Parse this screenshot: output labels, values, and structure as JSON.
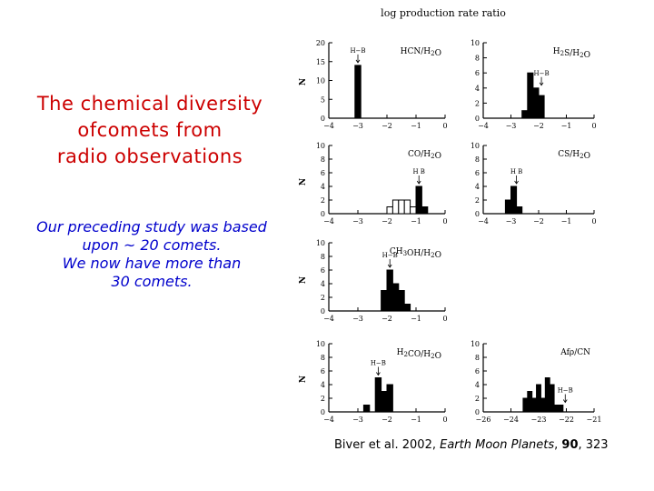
{
  "slide": {
    "title_lines": [
      "The chemical diversity",
      "ofcomets from",
      "radio observations"
    ],
    "note_lines": [
      "Our preceding study was based",
      "upon  ~ 20 comets.",
      "We now have more than",
      "30 comets."
    ],
    "citation": {
      "pre": "Biver et al. 2002, ",
      "journal": "Earth Moon Planets",
      "mid": ", ",
      "volume": "90",
      "post": ", 323"
    }
  },
  "colors": {
    "title": "#cc0000",
    "note": "#0000cc",
    "bar": "#000000"
  },
  "chart_data": {
    "type": "histogram",
    "title": "log production rate ratio",
    "ylabel": "N",
    "panels": [
      {
        "label": "HCN/H2O",
        "xlim": [
          -4,
          0
        ],
        "ylim": [
          0,
          20
        ],
        "xticks": [
          "−4",
          "−3",
          "−2",
          "−1",
          "0"
        ],
        "yticks": [
          "0",
          "5",
          "10",
          "15",
          "20"
        ],
        "bins": [
          {
            "x0": -3.1,
            "x1": -2.9,
            "count": 14
          }
        ],
        "marker": {
          "label": "H−B",
          "x": -3.0
        }
      },
      {
        "label": "H2S/H2O",
        "xlim": [
          -4,
          0
        ],
        "ylim": [
          0,
          10
        ],
        "xticks": [
          "−4",
          "−3",
          "−2",
          "−1",
          "0"
        ],
        "yticks": [
          "0",
          "2",
          "4",
          "6",
          "8",
          "10"
        ],
        "bins": [
          {
            "x0": -2.6,
            "x1": -2.4,
            "count": 1
          },
          {
            "x0": -2.4,
            "x1": -2.2,
            "count": 6
          },
          {
            "x0": -2.2,
            "x1": -2.0,
            "count": 4
          },
          {
            "x0": -2.0,
            "x1": -1.8,
            "count": 3
          }
        ],
        "marker": {
          "label": "H−B",
          "x": -1.9
        }
      },
      {
        "label": "CO/H2O",
        "xlim": [
          -4,
          0
        ],
        "ylim": [
          0,
          10
        ],
        "xticks": [
          "−4",
          "−3",
          "−2",
          "−1",
          "0"
        ],
        "yticks": [
          "0",
          "2",
          "4",
          "6",
          "8",
          "10"
        ],
        "bins": [
          {
            "x0": -2.0,
            "x1": -1.8,
            "count": 1,
            "open": true
          },
          {
            "x0": -1.8,
            "x1": -1.6,
            "count": 2,
            "open": true
          },
          {
            "x0": -1.6,
            "x1": -1.4,
            "count": 2,
            "open": true
          },
          {
            "x0": -1.4,
            "x1": -1.2,
            "count": 2,
            "open": true
          },
          {
            "x0": -1.2,
            "x1": -1.0,
            "count": 1,
            "open": true
          },
          {
            "x0": -1.0,
            "x1": -0.8,
            "count": 4
          },
          {
            "x0": -0.8,
            "x1": -0.6,
            "count": 1
          }
        ],
        "marker": {
          "label": "H B",
          "x": -0.9
        }
      },
      {
        "label": "CS/H2O",
        "xlim": [
          -4,
          0
        ],
        "ylim": [
          0,
          10
        ],
        "xticks": [
          "−4",
          "−3",
          "−2",
          "−1",
          "0"
        ],
        "yticks": [
          "0",
          "2",
          "4",
          "6",
          "8",
          "10"
        ],
        "bins": [
          {
            "x0": -3.2,
            "x1": -3.0,
            "count": 2
          },
          {
            "x0": -3.0,
            "x1": -2.8,
            "count": 4
          },
          {
            "x0": -2.8,
            "x1": -2.6,
            "count": 1
          }
        ],
        "marker": {
          "label": "H B",
          "x": -2.8
        }
      },
      {
        "label": "CH3OH/H2O",
        "xlim": [
          -4,
          0
        ],
        "ylim": [
          0,
          10
        ],
        "xticks": [
          "−4",
          "−3",
          "−2",
          "−1",
          "0"
        ],
        "yticks": [
          "0",
          "2",
          "4",
          "6",
          "8",
          "10"
        ],
        "bins": [
          {
            "x0": -2.2,
            "x1": -2.0,
            "count": 3
          },
          {
            "x0": -2.0,
            "x1": -1.8,
            "count": 6
          },
          {
            "x0": -1.8,
            "x1": -1.6,
            "count": 4
          },
          {
            "x0": -1.6,
            "x1": -1.4,
            "count": 3
          },
          {
            "x0": -1.4,
            "x1": -1.2,
            "count": 1
          }
        ],
        "marker": {
          "label": "H−B",
          "x": -1.9
        }
      },
      {
        "label": "H2CO/H2O",
        "xlim": [
          -4,
          0
        ],
        "ylim": [
          0,
          10
        ],
        "xticks": [
          "−4",
          "−3",
          "−2",
          "−1",
          "0"
        ],
        "yticks": [
          "0",
          "2",
          "4",
          "6",
          "8",
          "10"
        ],
        "bins": [
          {
            "x0": -2.8,
            "x1": -2.6,
            "count": 1
          },
          {
            "x0": -2.4,
            "x1": -2.2,
            "count": 5
          },
          {
            "x0": -2.2,
            "x1": -2.0,
            "count": 3
          },
          {
            "x0": -2.0,
            "x1": -1.8,
            "count": 4
          }
        ],
        "marker": {
          "label": "H−B",
          "x": -2.3
        }
      },
      {
        "label": "Afρ/CN",
        "xlim": [
          -26,
          -21
        ],
        "ylim": [
          0,
          10
        ],
        "xticks": [
          "−26",
          "−24",
          "−23",
          "−22",
          "−21"
        ],
        "yticks": [
          "0",
          "2",
          "4",
          "6",
          "8",
          "10"
        ],
        "bins": [
          {
            "x0": -24.2,
            "x1": -24.0,
            "count": 2
          },
          {
            "x0": -24.0,
            "x1": -23.8,
            "count": 3
          },
          {
            "x0": -23.8,
            "x1": -23.6,
            "count": 2
          },
          {
            "x0": -23.6,
            "x1": -23.4,
            "count": 4
          },
          {
            "x0": -23.4,
            "x1": -23.2,
            "count": 2
          },
          {
            "x0": -23.2,
            "x1": -23.0,
            "count": 5
          },
          {
            "x0": -23.0,
            "x1": -22.8,
            "count": 4
          },
          {
            "x0": -22.8,
            "x1": -22.6,
            "count": 1
          },
          {
            "x0": -22.6,
            "x1": -22.4,
            "count": 1
          }
        ],
        "marker": {
          "label": "H−B",
          "x": -22.3
        }
      }
    ]
  }
}
